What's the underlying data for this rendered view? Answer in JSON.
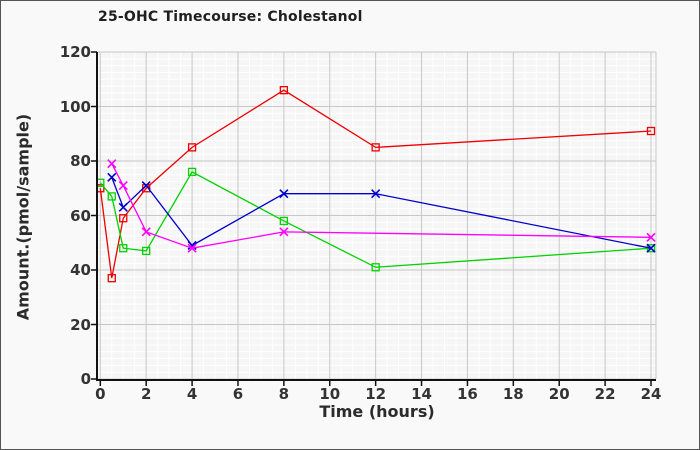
{
  "frame": {
    "background": "#f9f9f9",
    "border_color": "#555555",
    "plot_background": "#f6f6f6",
    "major_grid_color": "#c7c7c7",
    "minor_grid_color": "#ffffff",
    "axis_color": "#111111",
    "text_color": "#2b2b2b"
  },
  "chart_data": {
    "type": "line",
    "title": "25-OHC Timecourse: Cholestanol",
    "xlabel": "Time (hours)",
    "ylabel": "Amount.(pmol/sample)",
    "xlim": [
      0,
      24
    ],
    "ylim": [
      0,
      120
    ],
    "x_ticks": [
      0,
      2,
      4,
      6,
      8,
      10,
      12,
      14,
      16,
      18,
      20,
      22,
      24
    ],
    "y_ticks": [
      0,
      20,
      40,
      60,
      80,
      100,
      120
    ],
    "x_minor_step": 0.5,
    "y_minor_step": 2.5,
    "grid": true,
    "legend": "none",
    "series": [
      {
        "name": "red-squares",
        "color": "#ee0000",
        "marker": "square",
        "x": [
          0,
          0.5,
          1,
          2,
          4,
          8,
          12,
          24
        ],
        "y": [
          70,
          37,
          59,
          70,
          85,
          106,
          85,
          91
        ]
      },
      {
        "name": "green-squares",
        "color": "#00d300",
        "marker": "square",
        "x": [
          0,
          0.5,
          1,
          2,
          4,
          8,
          12,
          24
        ],
        "y": [
          72,
          67,
          48,
          47,
          76,
          58,
          41,
          48
        ]
      },
      {
        "name": "blue-x",
        "color": "#0000cc",
        "marker": "x",
        "x": [
          0.5,
          1,
          2,
          4,
          8,
          12,
          24
        ],
        "y": [
          74,
          63,
          71,
          49,
          68,
          68,
          48
        ]
      },
      {
        "name": "magenta-x",
        "color": "#ff00ff",
        "marker": "x",
        "x": [
          0.5,
          1,
          2,
          4,
          8,
          24
        ],
        "y": [
          79,
          71,
          54,
          48,
          54,
          52
        ]
      }
    ]
  }
}
